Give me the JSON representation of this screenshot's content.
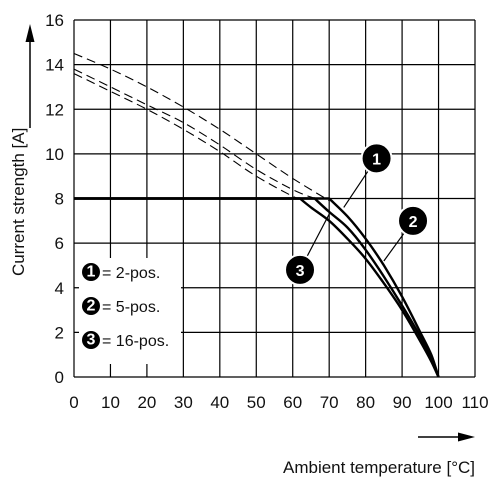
{
  "chart_data": {
    "type": "line",
    "xlabel": "Ambient temperature [°C]",
    "ylabel": "Current strength [A]",
    "xlim": [
      0,
      110
    ],
    "ylim": [
      0,
      16
    ],
    "x_ticks": [
      0,
      10,
      20,
      30,
      40,
      50,
      60,
      70,
      80,
      90,
      100,
      110
    ],
    "y_ticks": [
      0,
      2,
      4,
      6,
      8,
      10,
      12,
      14,
      16
    ],
    "grid": true,
    "legend_position": "bottom-left",
    "legend": [
      {
        "marker": "1",
        "label": "= 2-pos."
      },
      {
        "marker": "2",
        "label": "= 5-pos."
      },
      {
        "marker": "3",
        "label": "= 16-pos."
      }
    ],
    "series": [
      {
        "marker": "1",
        "style": "solid",
        "x": [
          0,
          70,
          75,
          80,
          85,
          90,
          95,
          98,
          100
        ],
        "y": [
          8,
          8,
          7.2,
          6.2,
          5.0,
          3.6,
          2.0,
          1.0,
          0
        ]
      },
      {
        "marker": "2",
        "style": "solid",
        "x": [
          0,
          66,
          70,
          75,
          80,
          85,
          90,
          95,
          98,
          100
        ],
        "y": [
          8,
          8,
          7.4,
          6.7,
          5.7,
          4.5,
          3.2,
          1.8,
          0.8,
          0
        ]
      },
      {
        "marker": "3",
        "style": "solid",
        "x": [
          0,
          62,
          65,
          70,
          75,
          80,
          85,
          90,
          95,
          98,
          100
        ],
        "y": [
          8,
          8,
          7.6,
          7.0,
          6.2,
          5.3,
          4.2,
          3.0,
          1.6,
          0.7,
          0
        ]
      },
      {
        "marker": "1",
        "style": "dashed",
        "x": [
          0,
          10,
          20,
          30,
          40,
          50,
          60,
          70
        ],
        "y": [
          14.5,
          13.8,
          13.0,
          12.1,
          11.1,
          10.0,
          8.9,
          7.9
        ]
      },
      {
        "marker": "2",
        "style": "dashed",
        "x": [
          0,
          10,
          20,
          30,
          40,
          50,
          60,
          66
        ],
        "y": [
          13.8,
          13.0,
          12.2,
          11.4,
          10.4,
          9.3,
          8.4,
          8.0
        ]
      },
      {
        "marker": "3",
        "style": "dashed",
        "x": [
          0,
          10,
          20,
          30,
          40,
          50,
          60,
          62
        ],
        "y": [
          13.6,
          12.8,
          12.0,
          11.1,
          10.1,
          9.0,
          8.1,
          8.0
        ]
      }
    ],
    "callouts": [
      {
        "label": "1",
        "x": 83,
        "y": 9.8,
        "target_x": 74,
        "target_y": 7.6
      },
      {
        "label": "2",
        "x": 93,
        "y": 7.0,
        "target_x": 85,
        "target_y": 5.2
      },
      {
        "label": "3",
        "x": 62,
        "y": 4.8,
        "target_x": 70,
        "target_y": 7.3
      }
    ]
  }
}
